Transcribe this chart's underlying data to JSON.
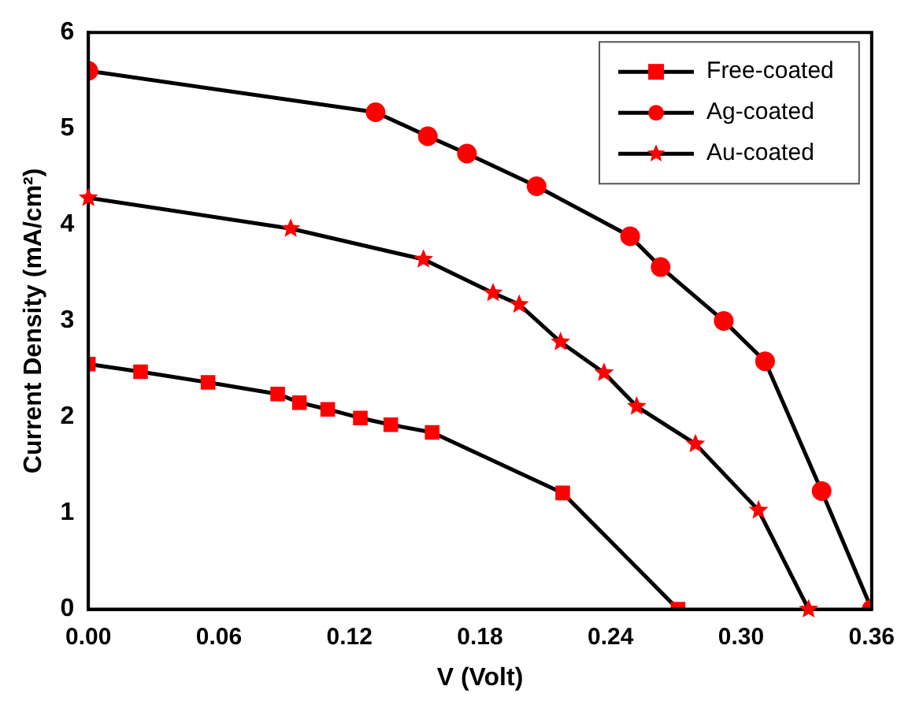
{
  "chart_data": {
    "type": "line",
    "xlabel": "V (Volt)",
    "ylabel": "Current Density (mA/cm²)",
    "xlim": [
      0,
      0.36
    ],
    "xticks": [
      {
        "value": 0,
        "label": "0.00"
      },
      {
        "value": 0.06,
        "label": "0.06"
      },
      {
        "value": 0.12,
        "label": "0.12"
      },
      {
        "value": 0.18,
        "label": "0.18"
      },
      {
        "value": 0.24,
        "label": "0.24"
      },
      {
        "value": 0.3,
        "label": "0.30"
      },
      {
        "value": 0.36,
        "label": "0.36"
      }
    ],
    "ylim": [
      0,
      6
    ],
    "yticks": [
      0,
      1,
      2,
      3,
      4,
      5,
      6
    ],
    "grid": false,
    "legend": "top right",
    "line_style": "solid",
    "series": [
      {
        "name": "Free-coated",
        "color": "#ff0000",
        "marker": "square",
        "x": [
          0,
          0.024,
          0.055,
          0.087,
          0.097,
          0.11,
          0.125,
          0.139,
          0.158,
          0.218,
          0.271
        ],
        "values": [
          2.55,
          2.47,
          2.36,
          2.24,
          2.15,
          2.08,
          1.99,
          1.92,
          1.84,
          1.21,
          0
        ]
      },
      {
        "name": "Ag-coated",
        "color": "#ff0000",
        "marker": "circle",
        "x": [
          0,
          0.132,
          0.156,
          0.174,
          0.206,
          0.249,
          0.263,
          0.292,
          0.311,
          0.337,
          0.36
        ],
        "values": [
          5.6,
          5.17,
          4.92,
          4.74,
          4.4,
          3.88,
          3.56,
          3.0,
          2.58,
          1.23,
          0
        ]
      },
      {
        "name": "Au-coated",
        "color": "#ff0000",
        "marker": "star",
        "x": [
          0,
          0.093,
          0.154,
          0.186,
          0.198,
          0.217,
          0.237,
          0.252,
          0.279,
          0.308,
          0.331
        ],
        "values": [
          4.28,
          3.96,
          3.64,
          3.29,
          3.17,
          2.78,
          2.46,
          2.11,
          1.72,
          1.03,
          0
        ]
      }
    ]
  }
}
